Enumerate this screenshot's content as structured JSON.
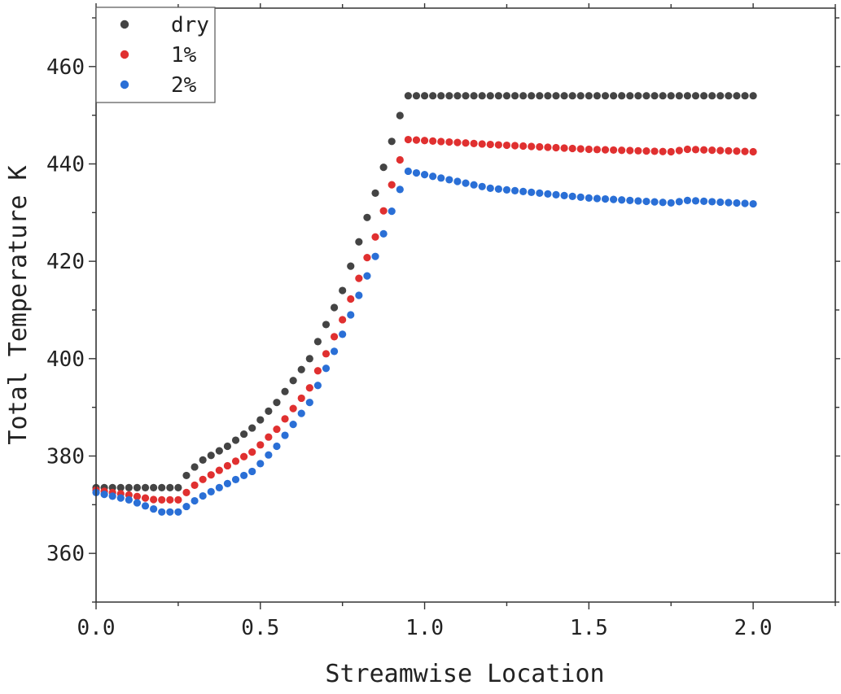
{
  "chart_data": {
    "type": "scatter",
    "xlabel": "Streamwise Location",
    "ylabel": "Total Temperature K",
    "xlim": [
      0.0,
      2.25
    ],
    "ylim": [
      350,
      472
    ],
    "x_ticks": [
      "0.0",
      "0.5",
      "1.0",
      "1.5",
      "2.0"
    ],
    "y_ticks": [
      "360",
      "380",
      "400",
      "420",
      "440",
      "460"
    ],
    "legend_position": "top-left",
    "grid": false,
    "series": [
      {
        "name": "dry",
        "color": "#444444",
        "points": [
          [
            0.0,
            373.5
          ],
          [
            0.25,
            373.5
          ],
          [
            0.28,
            376.5
          ],
          [
            0.32,
            379
          ],
          [
            0.4,
            382
          ],
          [
            0.48,
            386
          ],
          [
            0.55,
            391
          ],
          [
            0.65,
            400
          ],
          [
            0.75,
            414
          ],
          [
            0.85,
            434
          ],
          [
            0.93,
            451
          ],
          [
            0.95,
            454
          ],
          [
            2.0,
            454
          ]
        ]
      },
      {
        "name": "1%",
        "color": "#e03030",
        "points": [
          [
            0.0,
            373
          ],
          [
            0.1,
            372
          ],
          [
            0.18,
            371
          ],
          [
            0.26,
            371
          ],
          [
            0.28,
            373
          ],
          [
            0.32,
            375
          ],
          [
            0.4,
            378
          ],
          [
            0.48,
            381
          ],
          [
            0.55,
            385.5
          ],
          [
            0.65,
            394
          ],
          [
            0.75,
            408
          ],
          [
            0.85,
            425
          ],
          [
            0.92,
            440
          ],
          [
            0.95,
            445
          ],
          [
            1.2,
            444
          ],
          [
            1.5,
            443
          ],
          [
            1.75,
            442.5
          ],
          [
            1.8,
            443
          ],
          [
            2.0,
            442.5
          ]
        ]
      },
      {
        "name": "2%",
        "color": "#2a6fd6",
        "points": [
          [
            0.0,
            372.5
          ],
          [
            0.1,
            371
          ],
          [
            0.2,
            368.5
          ],
          [
            0.26,
            368.5
          ],
          [
            0.28,
            370
          ],
          [
            0.33,
            372
          ],
          [
            0.42,
            375
          ],
          [
            0.48,
            377
          ],
          [
            0.55,
            382
          ],
          [
            0.65,
            391
          ],
          [
            0.75,
            405
          ],
          [
            0.85,
            421
          ],
          [
            0.92,
            434
          ],
          [
            0.95,
            438.5
          ],
          [
            1.2,
            435
          ],
          [
            1.5,
            433
          ],
          [
            1.75,
            432
          ],
          [
            1.8,
            432.5
          ],
          [
            2.0,
            431.8
          ]
        ]
      }
    ]
  }
}
